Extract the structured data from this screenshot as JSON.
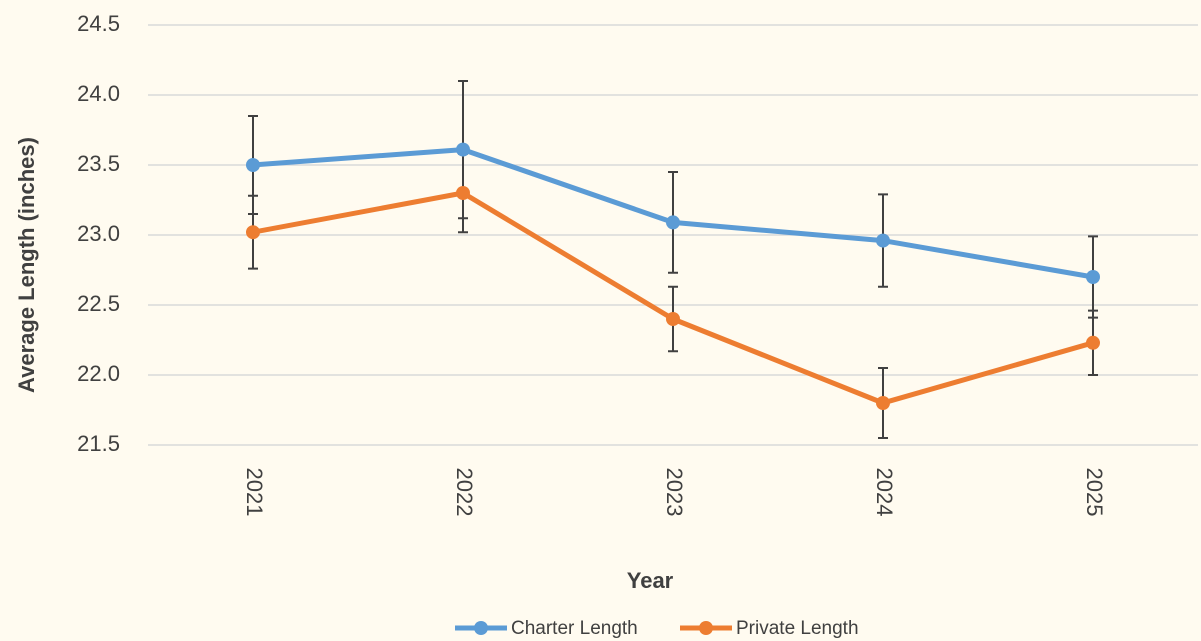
{
  "chart_data": {
    "type": "line",
    "x_label": "Year",
    "y_label": "Average Length (inches)",
    "categories": [
      "2021",
      "2022",
      "2023",
      "2024",
      "2025"
    ],
    "series": [
      {
        "name": "Charter Length",
        "color": "#5b9bd5",
        "values": [
          23.5,
          23.61,
          23.09,
          22.96,
          22.7
        ],
        "errors": [
          0.35,
          0.49,
          0.36,
          0.33,
          0.29
        ]
      },
      {
        "name": "Private Length",
        "color": "#ed7d31",
        "values": [
          23.02,
          23.3,
          22.4,
          21.8,
          22.23
        ],
        "errors": [
          0.26,
          0.28,
          0.23,
          0.25,
          0.23
        ]
      }
    ],
    "ylim": [
      21.5,
      24.5
    ],
    "yticks": [
      21.5,
      {
        "value": 22,
        "label": "22.0"
      },
      22.5,
      {
        "value": 23,
        "label": "23.0"
      },
      23.5,
      {
        "value": 24,
        "label": "24.0"
      },
      24.5
    ],
    "grid": true,
    "legend": "bottom"
  }
}
